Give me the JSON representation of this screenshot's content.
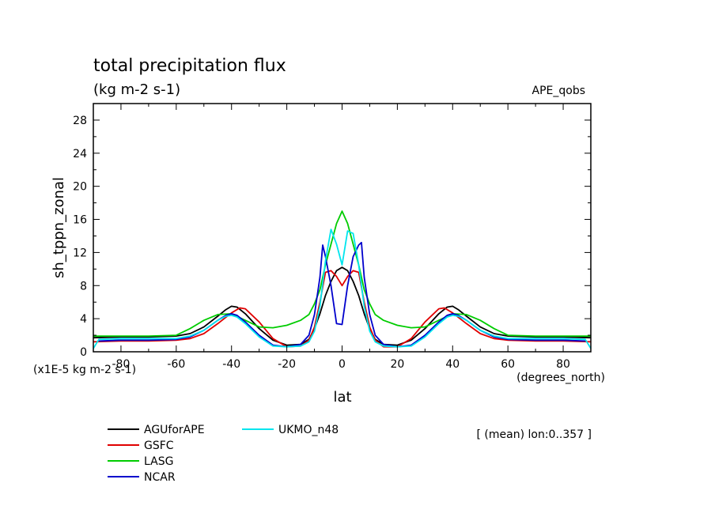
{
  "chart_data": {
    "type": "line",
    "title": "total precipitation flux",
    "subtitle": "(kg m-2 s-1)",
    "dataset": "APE_qobs",
    "ylabel": "sh_tppn_zonal",
    "yunits": "(x1E-5 kg m-2 s-1)",
    "xlabel": "lat",
    "xunits": "(degrees_north)",
    "note": "[ (mean) lon:0..357 ]",
    "xlim": [
      -90,
      90
    ],
    "ylim": [
      0,
      30
    ],
    "xticks": [
      -80,
      -60,
      -40,
      -20,
      0,
      20,
      40,
      60,
      80
    ],
    "xtick_labels": [
      "-80",
      "-60",
      "-40",
      "-20",
      "0",
      "20",
      "40",
      "60",
      "80"
    ],
    "yticks": [
      0,
      4,
      8,
      12,
      16,
      20,
      24,
      28
    ],
    "ytick_labels": [
      "0",
      "4",
      "8",
      "12",
      "16",
      "20",
      "24",
      "28"
    ],
    "series": [
      {
        "name": "AGUforAPE",
        "color": "#000000",
        "x": [
          -90,
          -80,
          -70,
          -60,
          -55,
          -50,
          -45,
          -42,
          -40,
          -38,
          -35,
          -30,
          -25,
          -20,
          -15,
          -12,
          -10,
          -8,
          -6,
          -4,
          -2,
          0,
          2,
          4,
          6,
          8,
          10,
          12,
          15,
          20,
          25,
          30,
          35,
          38,
          40,
          42,
          45,
          50,
          55,
          60,
          70,
          80,
          90
        ],
        "y": [
          1.7,
          1.8,
          1.8,
          1.9,
          2.2,
          3.0,
          4.3,
          5.1,
          5.5,
          5.4,
          4.6,
          2.8,
          1.4,
          0.8,
          0.9,
          1.5,
          2.8,
          4.6,
          6.8,
          8.5,
          9.8,
          10.2,
          9.8,
          8.5,
          6.8,
          4.6,
          2.8,
          1.5,
          0.9,
          0.8,
          1.4,
          2.8,
          4.6,
          5.4,
          5.5,
          5.1,
          4.3,
          3.0,
          2.2,
          1.9,
          1.8,
          1.8,
          1.7
        ]
      },
      {
        "name": "GSFC",
        "color": "#e00000",
        "x": [
          -90,
          -80,
          -70,
          -60,
          -55,
          -50,
          -45,
          -40,
          -37,
          -35,
          -30,
          -25,
          -20,
          -15,
          -12,
          -10,
          -8,
          -6,
          -4,
          -2,
          0,
          2,
          4,
          6,
          8,
          10,
          12,
          15,
          20,
          25,
          30,
          35,
          37,
          40,
          45,
          50,
          55,
          60,
          70,
          80,
          90
        ],
        "y": [
          1.2,
          1.3,
          1.3,
          1.4,
          1.6,
          2.2,
          3.4,
          4.7,
          5.3,
          5.2,
          3.6,
          1.6,
          0.6,
          0.7,
          1.4,
          3.0,
          6.0,
          9.6,
          9.8,
          9.1,
          8.0,
          9.1,
          9.8,
          9.6,
          6.0,
          3.0,
          1.4,
          0.6,
          0.6,
          1.6,
          3.6,
          5.2,
          5.3,
          4.7,
          3.4,
          2.2,
          1.6,
          1.4,
          1.3,
          1.3,
          1.2
        ]
      },
      {
        "name": "LASG",
        "color": "#00cc00",
        "x": [
          -90,
          -80,
          -70,
          -60,
          -55,
          -50,
          -45,
          -40,
          -35,
          -30,
          -25,
          -20,
          -15,
          -12,
          -10,
          -8,
          -6,
          -4,
          -2,
          0,
          2,
          4,
          6,
          8,
          10,
          12,
          15,
          20,
          25,
          30,
          35,
          40,
          45,
          50,
          55,
          60,
          70,
          80,
          90
        ],
        "y": [
          1.9,
          1.9,
          1.9,
          2.0,
          2.8,
          3.8,
          4.5,
          4.6,
          3.8,
          3.0,
          2.9,
          3.2,
          3.8,
          4.5,
          5.8,
          7.5,
          10.5,
          13.0,
          15.5,
          17.0,
          15.5,
          13.0,
          10.5,
          7.5,
          5.8,
          4.5,
          3.8,
          3.2,
          2.9,
          3.0,
          3.8,
          4.6,
          4.5,
          3.8,
          2.8,
          2.0,
          1.9,
          1.9,
          1.9
        ]
      },
      {
        "name": "NCAR",
        "color": "#0000cc",
        "x": [
          -88,
          -80,
          -70,
          -60,
          -55,
          -50,
          -45,
          -42,
          -40,
          -38,
          -35,
          -30,
          -25,
          -20,
          -15,
          -12,
          -10,
          -8,
          -7,
          -6,
          -4,
          -2,
          0,
          2,
          4,
          6,
          7,
          8,
          10,
          12,
          15,
          20,
          25,
          30,
          35,
          38,
          40,
          42,
          45,
          50,
          55,
          60,
          70,
          80,
          88
        ],
        "y": [
          1.3,
          1.4,
          1.4,
          1.5,
          1.8,
          2.6,
          3.8,
          4.4,
          4.6,
          4.4,
          3.6,
          2.0,
          0.8,
          0.6,
          0.9,
          2.0,
          4.5,
          9.0,
          12.9,
          11.5,
          8.0,
          3.4,
          3.3,
          8.0,
          11.5,
          12.9,
          13.2,
          9.0,
          4.5,
          2.0,
          0.9,
          0.6,
          0.8,
          2.0,
          3.6,
          4.4,
          4.6,
          4.4,
          3.8,
          2.6,
          1.8,
          1.5,
          1.4,
          1.4,
          1.3
        ]
      },
      {
        "name": "UKMO_n48",
        "color": "#00e5ee",
        "x": [
          -90,
          -88,
          -80,
          -70,
          -60,
          -55,
          -50,
          -45,
          -42,
          -40,
          -38,
          -35,
          -30,
          -25,
          -20,
          -15,
          -12,
          -10,
          -8,
          -6,
          -4,
          -2,
          0,
          2,
          4,
          6,
          8,
          10,
          12,
          15,
          20,
          25,
          30,
          35,
          38,
          40,
          42,
          45,
          50,
          55,
          60,
          70,
          80,
          88,
          90
        ],
        "y": [
          0.4,
          1.5,
          1.6,
          1.6,
          1.6,
          1.9,
          2.6,
          3.8,
          4.3,
          4.4,
          4.2,
          3.4,
          1.8,
          0.7,
          0.6,
          0.7,
          1.2,
          2.5,
          5.5,
          11.0,
          14.8,
          13.0,
          10.5,
          14.6,
          14.3,
          10.5,
          5.5,
          2.5,
          1.2,
          0.7,
          0.6,
          0.7,
          1.8,
          3.4,
          4.2,
          4.4,
          4.3,
          3.8,
          2.6,
          1.9,
          1.6,
          1.6,
          1.6,
          1.5,
          0.4
        ]
      }
    ]
  }
}
